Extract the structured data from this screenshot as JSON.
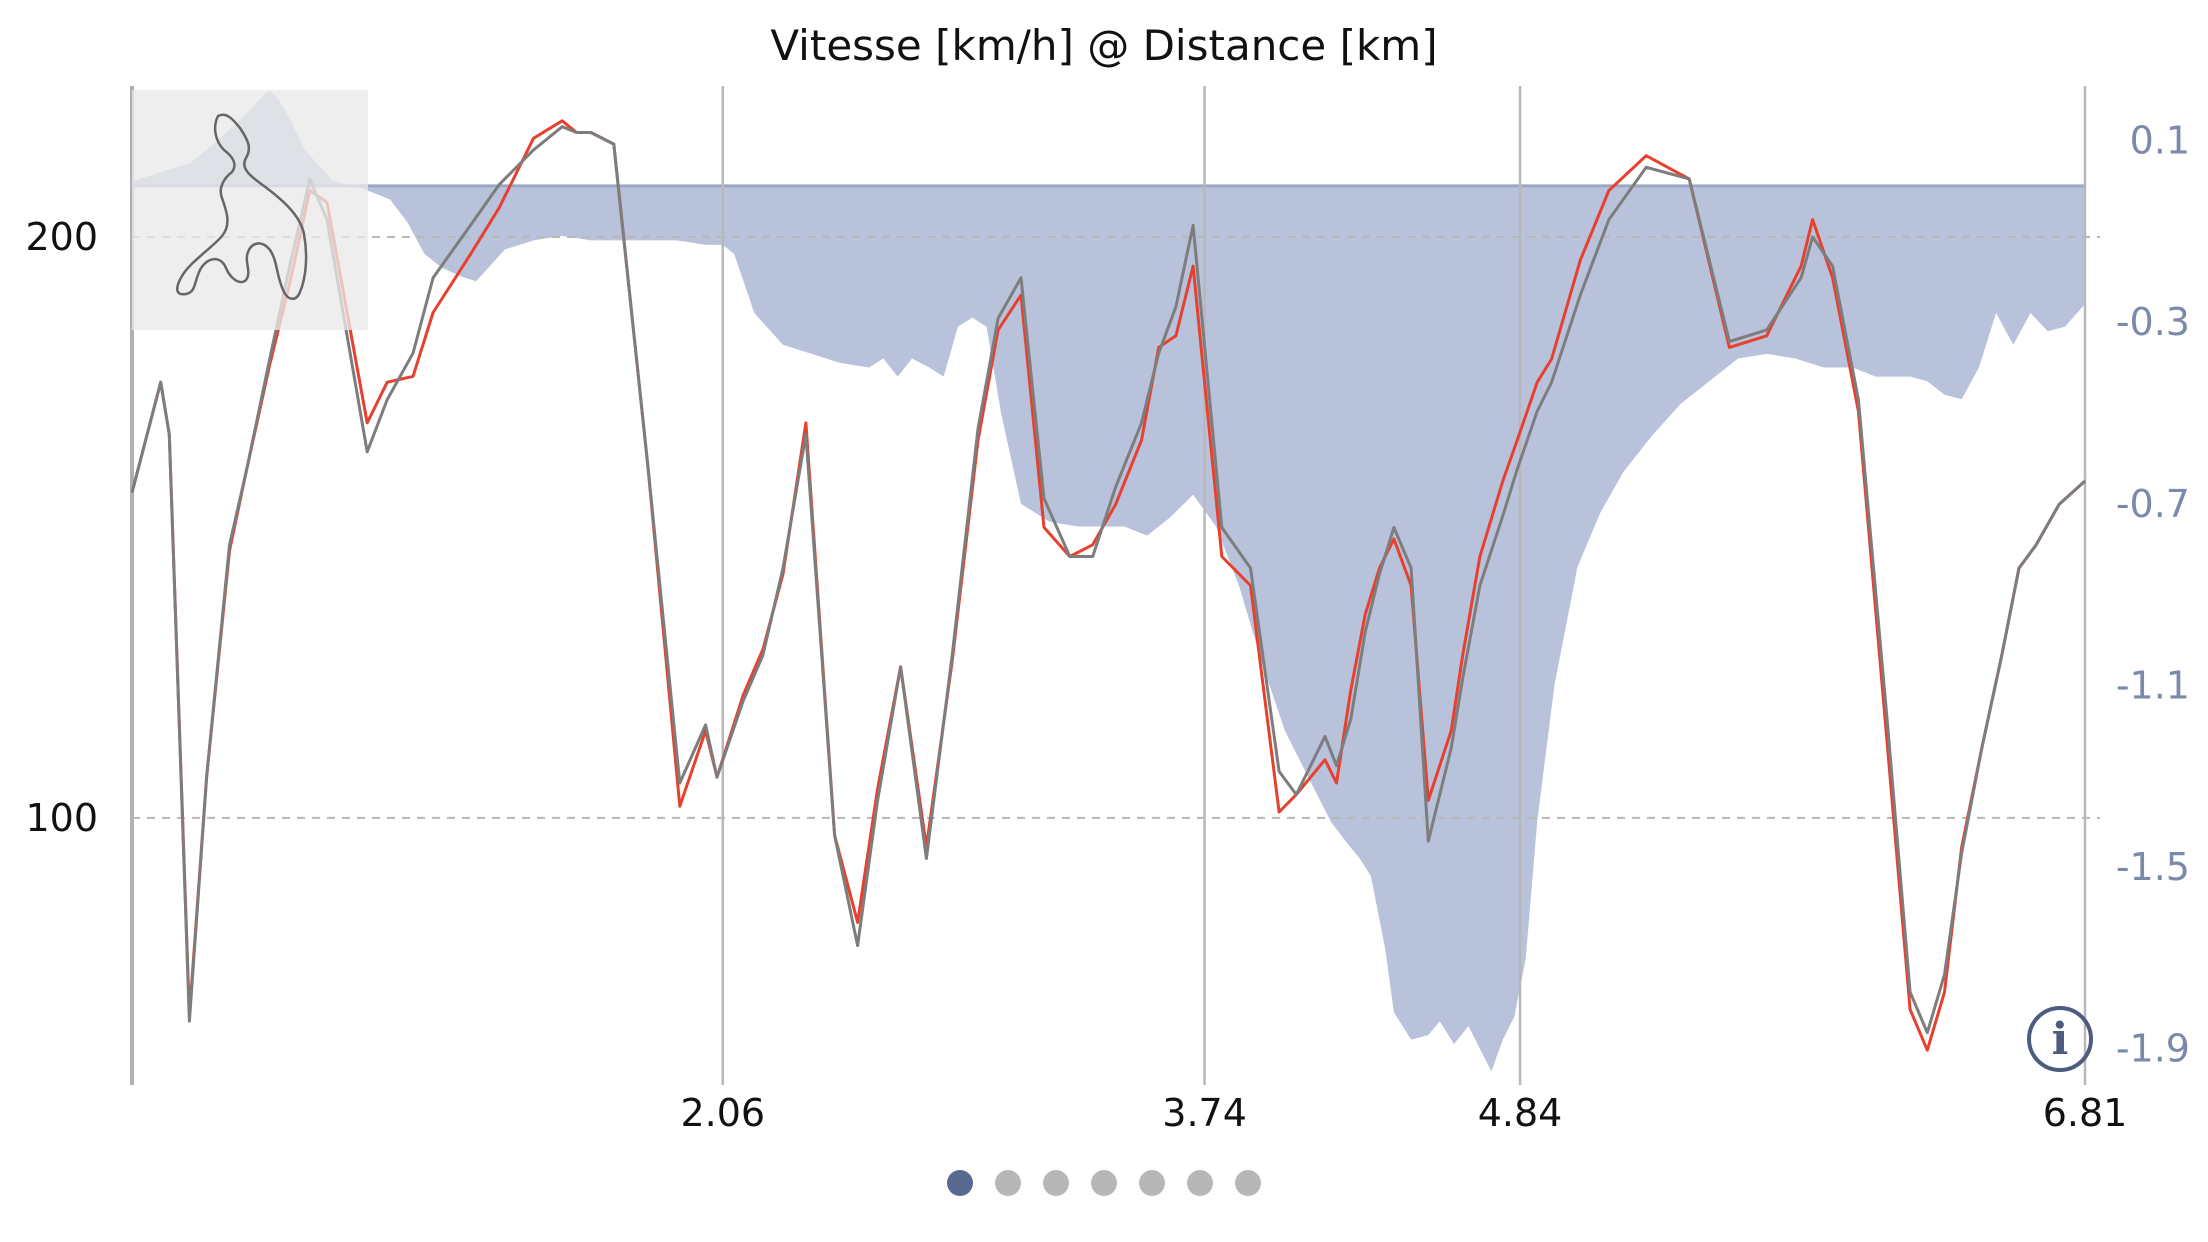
{
  "chart_data": {
    "type": "line",
    "title": "Vitesse [km/h] @ Distance [km]",
    "x_ticks": [
      "2.06",
      "3.74",
      "4.84",
      "6.81"
    ],
    "x_tick_values": [
      2.06,
      3.74,
      4.84,
      6.81
    ],
    "xlim": [
      0,
      6.81
    ],
    "y_ticks": [
      "200",
      "100"
    ],
    "y_tick_values": [
      200,
      100
    ],
    "ylim": [
      54,
      226
    ],
    "y2_ticks": [
      "0.1",
      "-0.3",
      "-0.7",
      "-1.1",
      "-1.5",
      "-1.9"
    ],
    "y2_tick_values": [
      0.1,
      -0.3,
      -0.7,
      -1.1,
      -1.5,
      -1.9
    ],
    "y2lim": [
      -1.98,
      0.22
    ],
    "grid": "vertical lines at x ticks; dashed horizontal lines at y ticks",
    "legend": "none",
    "x": [
      0,
      0.1,
      0.13,
      0.2,
      0.26,
      0.34,
      0.4,
      0.48,
      0.55,
      0.62,
      0.68,
      0.82,
      0.89,
      0.98,
      1.05,
      1.18,
      1.28,
      1.4,
      1.5,
      1.55,
      1.6,
      1.68,
      1.8,
      1.91,
      2.0,
      2.04,
      2.13,
      2.2,
      2.27,
      2.35,
      2.45,
      2.53,
      2.6,
      2.68,
      2.77,
      2.86,
      2.95,
      3.02,
      3.1,
      3.18,
      3.27,
      3.35,
      3.43,
      3.52,
      3.58,
      3.64,
      3.7,
      3.8,
      3.9,
      4.0,
      4.06,
      4.16,
      4.2,
      4.25,
      4.3,
      4.35,
      4.4,
      4.46,
      4.52,
      4.6,
      4.64,
      4.7,
      4.78,
      4.83,
      4.9,
      4.95,
      5.05,
      5.15,
      5.28,
      5.43,
      5.57,
      5.7,
      5.82,
      5.86,
      5.93,
      6.02,
      6.12,
      6.2,
      6.26,
      6.32,
      6.38,
      6.45,
      6.52,
      6.58,
      6.64,
      6.72,
      6.81
    ],
    "series": [
      {
        "values": [
          156,
          175,
          166,
          66,
          107,
          146,
          160,
          178,
          192,
          208,
          206,
          168,
          175,
          176,
          187,
          197,
          205,
          217,
          220,
          218,
          218,
          216,
          160,
          102,
          115,
          107,
          121,
          129,
          142,
          168,
          97,
          82,
          105,
          126,
          95,
          127,
          165,
          184,
          190,
          150,
          145,
          147,
          154,
          165,
          181,
          183,
          195,
          145,
          140,
          101,
          104,
          110,
          106,
          122,
          135,
          143,
          148,
          140,
          103,
          115,
          128,
          145,
          158,
          165,
          175,
          179,
          196,
          208,
          214,
          210,
          181,
          183,
          195,
          203,
          193,
          170,
          113,
          67,
          60,
          70,
          95,
          112,
          128,
          143,
          147,
          154,
          158
        ],
        "color": "#e8402f"
      },
      {
        "values": [
          156,
          175,
          166,
          65,
          107,
          147,
          160,
          179,
          195,
          210,
          203,
          163,
          172,
          180,
          193,
          202,
          209,
          215,
          219,
          218,
          218,
          216,
          160,
          106,
          116,
          107,
          120,
          128,
          143,
          166,
          97,
          78,
          103,
          126,
          93,
          128,
          167,
          186,
          193,
          155,
          145,
          145,
          157,
          168,
          180,
          188,
          202,
          150,
          143,
          108,
          104,
          114,
          109,
          117,
          132,
          142,
          150,
          143,
          96,
          112,
          124,
          140,
          152,
          160,
          170,
          175,
          190,
          203,
          212,
          210,
          182,
          184,
          193,
          200,
          195,
          172,
          117,
          70,
          63,
          73,
          94,
          112,
          128,
          143,
          147,
          154,
          158
        ],
        "color": "#7d7d7d"
      }
    ],
    "delta": {
      "x": [
        0,
        0.1,
        0.2,
        0.3,
        0.4,
        0.46,
        0.48,
        0.5,
        0.55,
        0.6,
        0.66,
        0.7,
        0.78,
        0.9,
        0.96,
        1.02,
        1.08,
        1.15,
        1.2,
        1.3,
        1.4,
        1.5,
        1.6,
        1.7,
        1.8,
        1.9,
        2.0,
        2.06,
        2.1,
        2.17,
        2.27,
        2.37,
        2.47,
        2.57,
        2.62,
        2.67,
        2.72,
        2.78,
        2.83,
        2.88,
        2.93,
        2.98,
        3.03,
        3.1,
        3.2,
        3.3,
        3.38,
        3.46,
        3.54,
        3.62,
        3.7,
        3.78,
        3.86,
        3.94,
        4.02,
        4.1,
        4.18,
        4.24,
        4.28,
        4.32,
        4.37,
        4.4,
        4.46,
        4.52,
        4.56,
        4.61,
        4.66,
        4.7,
        4.74,
        4.78,
        4.82,
        4.86,
        4.9,
        4.96,
        5.04,
        5.12,
        5.2,
        5.3,
        5.4,
        5.5,
        5.6,
        5.7,
        5.8,
        5.9,
        6.0,
        6.08,
        6.14,
        6.2,
        6.26,
        6.32,
        6.38,
        6.44,
        6.5,
        6.56,
        6.62,
        6.68,
        6.74,
        6.81
      ],
      "values": [
        0.01,
        0.03,
        0.05,
        0.1,
        0.16,
        0.2,
        0.21,
        0.2,
        0.15,
        0.08,
        0.04,
        0.01,
        0.0,
        -0.03,
        -0.08,
        -0.15,
        -0.18,
        -0.2,
        -0.21,
        -0.14,
        -0.12,
        -0.11,
        -0.12,
        -0.12,
        -0.12,
        -0.12,
        -0.13,
        -0.13,
        -0.15,
        -0.28,
        -0.35,
        -0.37,
        -0.39,
        -0.4,
        -0.38,
        -0.42,
        -0.38,
        -0.4,
        -0.42,
        -0.31,
        -0.29,
        -0.31,
        -0.5,
        -0.7,
        -0.74,
        -0.75,
        -0.75,
        -0.75,
        -0.77,
        -0.73,
        -0.68,
        -0.75,
        -0.88,
        -1.05,
        -1.2,
        -1.3,
        -1.4,
        -1.45,
        -1.48,
        -1.52,
        -1.68,
        -1.82,
        -1.88,
        -1.87,
        -1.84,
        -1.89,
        -1.85,
        -1.9,
        -1.95,
        -1.88,
        -1.83,
        -1.7,
        -1.4,
        -1.1,
        -0.84,
        -0.72,
        -0.63,
        -0.55,
        -0.48,
        -0.43,
        -0.38,
        -0.37,
        -0.38,
        -0.4,
        -0.4,
        -0.42,
        -0.42,
        -0.42,
        -0.43,
        -0.46,
        -0.47,
        -0.4,
        -0.28,
        -0.35,
        -0.28,
        -0.32,
        -0.31,
        -0.26
      ],
      "color": "#b4bfd8",
      "axis": "right"
    },
    "track_map": {
      "shown": true,
      "position": "top-left"
    },
    "pager": {
      "pages": 7,
      "active": 1
    },
    "info_icon": "info-icon"
  },
  "colors": {
    "pager_active": "#58698f",
    "pager_inactive": "#b7b7b7",
    "right_axis": "#7b89ab"
  }
}
